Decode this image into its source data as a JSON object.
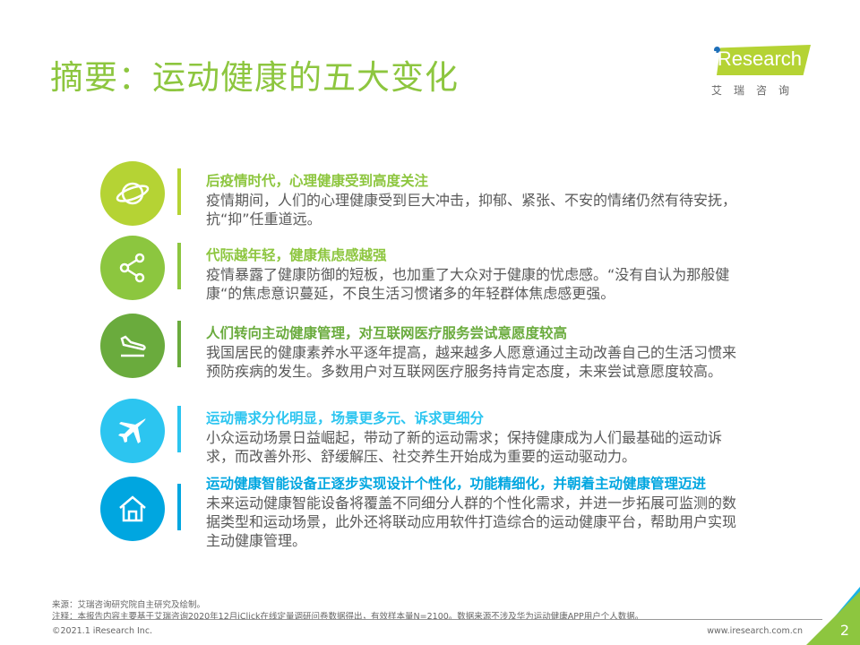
{
  "header": {
    "title": "摘要：运动健康的五大变化"
  },
  "logo": {
    "text": "iResearch",
    "cn": "艾瑞咨询"
  },
  "colors": {
    "green": "#8dc63f",
    "lime": "#b5d334",
    "blue": "#1ab2e8",
    "text": "#595959"
  },
  "items": [
    {
      "icon": "planet-icon",
      "color": "#b5d334",
      "title_color": "#8dc63f",
      "title": "后疫情时代，心理健康受到高度关注",
      "body": "疫情期间，人们的心理健康受到巨大冲击，抑郁、紧张、不安的情绪仍然有待安抚，抗“抑”任重道远。"
    },
    {
      "icon": "share-icon",
      "color": "#8cc63f",
      "title_color": "#8dc63f",
      "title": "代际越年轻，健康焦虑感越强",
      "body": "疫情暴露了健康防御的短板，也加重了大众对于健康的忧虑感。“没有自认为那般健康“的焦虑意识蔓延，不良生活习惯诸多的年轻群体焦虑感更强。"
    },
    {
      "icon": "plane-landing-icon",
      "color": "#6aab3d",
      "title_color": "#6aab3d",
      "title": "人们转向主动健康管理，对互联网医疗服务尝试意愿度较高",
      "body": "我国居民的健康素养水平逐年提高，越来越多人愿意通过主动改善自己的生活习惯来预防疾病的发生。多数用户对互联网医疗服务持肯定态度，未来尝试意愿度较高。"
    },
    {
      "icon": "airplane-icon",
      "color": "#2cc5f0",
      "title_color": "#2cc5f0",
      "title": "运动需求分化明显，场景更多元、诉求更细分",
      "body": "小众运动场景日益崛起，带动了新的运动需求；保持健康成为人们最基础的运动诉求，而改善外形、舒缓解压、社交养生开始成为重要的运动驱动力。"
    },
    {
      "icon": "house-icon",
      "color": "#00a6e0",
      "title_color": "#00a6e0",
      "title": "运动健康智能设备正逐步实现设计个性化，功能精细化，并朝着主动健康管理迈进",
      "body": "未来运动健康智能设备将覆盖不同细分人群的个性化需求，并进一步拓展可监测的数据类型和运动场景，此外还将联动应用软件打造综合的运动健康平台，帮助用户实现主动健康管理。"
    }
  ],
  "footer": {
    "source": "来源：艾瑞咨询研究院自主研究及绘制。",
    "note": "注释：本报告内容主要基于艾瑞咨询2020年12月iClick在线定量调研问卷数据得出，有效样本量N=2100。数据来源不涉及华为运动健康APP用户个人数据。",
    "copyright": "©2021.1 iResearch Inc.",
    "website": "www.iresearch.com.cn",
    "page": "2"
  }
}
